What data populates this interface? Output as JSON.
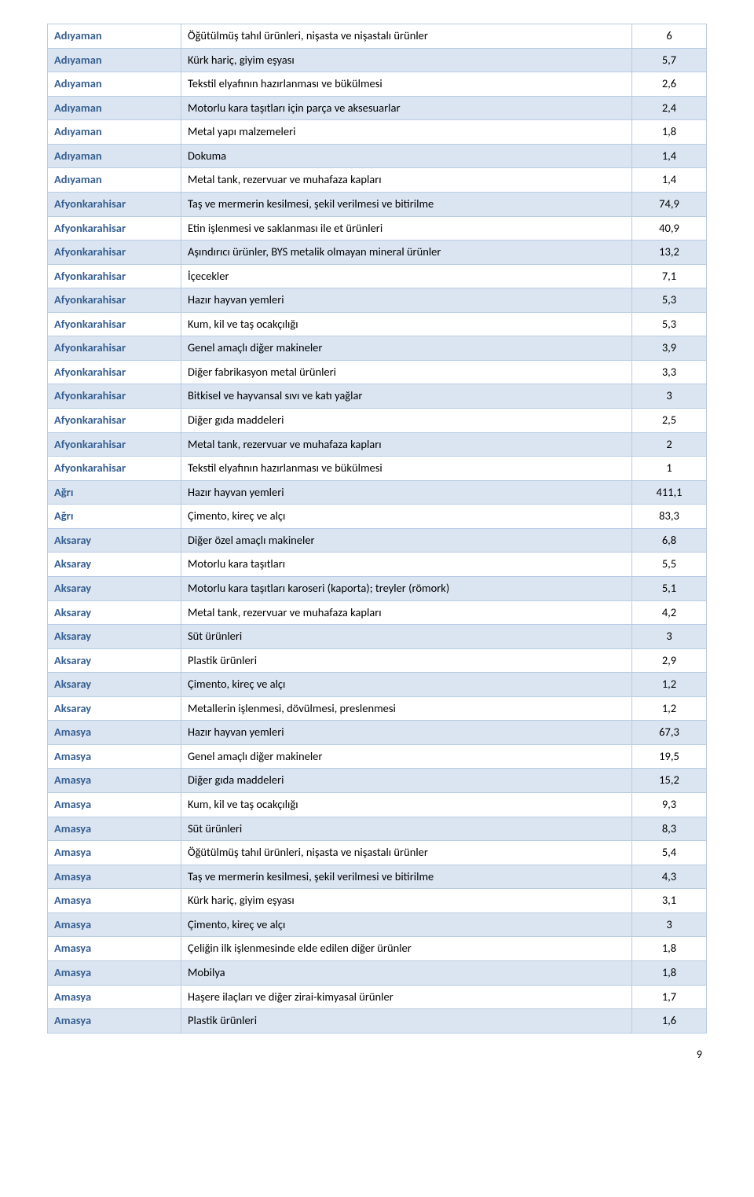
{
  "rows": [
    {
      "city": "Adıyaman",
      "desc": "Öğütülmüş tahıl ürünleri, nişasta ve nişastalı ürünler",
      "val": "6"
    },
    {
      "city": "Adıyaman",
      "desc": "Kürk hariç, giyim eşyası",
      "val": "5,7"
    },
    {
      "city": "Adıyaman",
      "desc": "Tekstil elyafının hazırlanması ve bükülmesi",
      "val": "2,6"
    },
    {
      "city": "Adıyaman",
      "desc": "Motorlu kara taşıtları için parça ve aksesuarlar",
      "val": "2,4"
    },
    {
      "city": "Adıyaman",
      "desc": "Metal yapı malzemeleri",
      "val": "1,8"
    },
    {
      "city": "Adıyaman",
      "desc": "Dokuma",
      "val": "1,4"
    },
    {
      "city": "Adıyaman",
      "desc": "Metal tank, rezervuar ve muhafaza kapları",
      "val": "1,4"
    },
    {
      "city": "Afyonkarahisar",
      "desc": "Taş ve mermerin kesilmesi, şekil verilmesi ve bitirilme",
      "val": "74,9"
    },
    {
      "city": "Afyonkarahisar",
      "desc": "Etin işlenmesi ve saklanması ile et ürünleri",
      "val": "40,9"
    },
    {
      "city": "Afyonkarahisar",
      "desc": "Aşındırıcı ürünler, BYS metalik olmayan mineral ürünler",
      "val": "13,2"
    },
    {
      "city": "Afyonkarahisar",
      "desc": "İçecekler",
      "val": "7,1"
    },
    {
      "city": "Afyonkarahisar",
      "desc": "Hazır hayvan yemleri",
      "val": "5,3"
    },
    {
      "city": "Afyonkarahisar",
      "desc": "Kum, kil ve taş ocakçılığı",
      "val": "5,3"
    },
    {
      "city": "Afyonkarahisar",
      "desc": "Genel amaçlı diğer makineler",
      "val": "3,9"
    },
    {
      "city": "Afyonkarahisar",
      "desc": "Diğer fabrikasyon metal ürünleri",
      "val": "3,3"
    },
    {
      "city": "Afyonkarahisar",
      "desc": "Bitkisel ve hayvansal sıvı ve katı yağlar",
      "val": "3"
    },
    {
      "city": "Afyonkarahisar",
      "desc": "Diğer gıda maddeleri",
      "val": "2,5"
    },
    {
      "city": "Afyonkarahisar",
      "desc": "Metal tank, rezervuar ve muhafaza kapları",
      "val": "2"
    },
    {
      "city": "Afyonkarahisar",
      "desc": "Tekstil elyafının hazırlanması ve bükülmesi",
      "val": "1"
    },
    {
      "city": "Ağrı",
      "desc": "Hazır hayvan yemleri",
      "val": "411,1"
    },
    {
      "city": "Ağrı",
      "desc": "Çimento, kireç ve alçı",
      "val": "83,3"
    },
    {
      "city": "Aksaray",
      "desc": "Diğer özel amaçlı makineler",
      "val": "6,8"
    },
    {
      "city": "Aksaray",
      "desc": "Motorlu kara taşıtları",
      "val": "5,5"
    },
    {
      "city": "Aksaray",
      "desc": "Motorlu kara taşıtları karoseri (kaporta); treyler (römork)",
      "val": "5,1"
    },
    {
      "city": "Aksaray",
      "desc": "Metal tank, rezervuar ve muhafaza kapları",
      "val": "4,2"
    },
    {
      "city": "Aksaray",
      "desc": "Süt ürünleri",
      "val": "3"
    },
    {
      "city": "Aksaray",
      "desc": "Plastik ürünleri",
      "val": "2,9"
    },
    {
      "city": "Aksaray",
      "desc": "Çimento, kireç ve alçı",
      "val": "1,2"
    },
    {
      "city": "Aksaray",
      "desc": "Metallerin işlenmesi, dövülmesi, preslenmesi",
      "val": "1,2"
    },
    {
      "city": "Amasya",
      "desc": "Hazır hayvan yemleri",
      "val": "67,3"
    },
    {
      "city": "Amasya",
      "desc": "Genel amaçlı diğer makineler",
      "val": "19,5"
    },
    {
      "city": "Amasya",
      "desc": "Diğer gıda maddeleri",
      "val": "15,2"
    },
    {
      "city": "Amasya",
      "desc": "Kum, kil ve taş ocakçılığı",
      "val": "9,3"
    },
    {
      "city": "Amasya",
      "desc": "Süt ürünleri",
      "val": "8,3"
    },
    {
      "city": "Amasya",
      "desc": "Öğütülmüş tahıl ürünleri, nişasta ve nişastalı ürünler",
      "val": "5,4"
    },
    {
      "city": "Amasya",
      "desc": "Taş ve mermerin kesilmesi, şekil verilmesi ve bitirilme",
      "val": "4,3"
    },
    {
      "city": "Amasya",
      "desc": "Kürk hariç, giyim eşyası",
      "val": "3,1"
    },
    {
      "city": "Amasya",
      "desc": "Çimento, kireç ve alçı",
      "val": "3"
    },
    {
      "city": "Amasya",
      "desc": "Çeliğin ilk işlenmesinde elde edilen diğer ürünler",
      "val": "1,8"
    },
    {
      "city": "Amasya",
      "desc": "Mobilya",
      "val": "1,8"
    },
    {
      "city": "Amasya",
      "desc": "Haşere ilaçları ve diğer zirai-kimyasal ürünler",
      "val": "1,7"
    },
    {
      "city": "Amasya",
      "desc": "Plastik ürünleri",
      "val": "1,6"
    }
  ],
  "page_number": "9"
}
